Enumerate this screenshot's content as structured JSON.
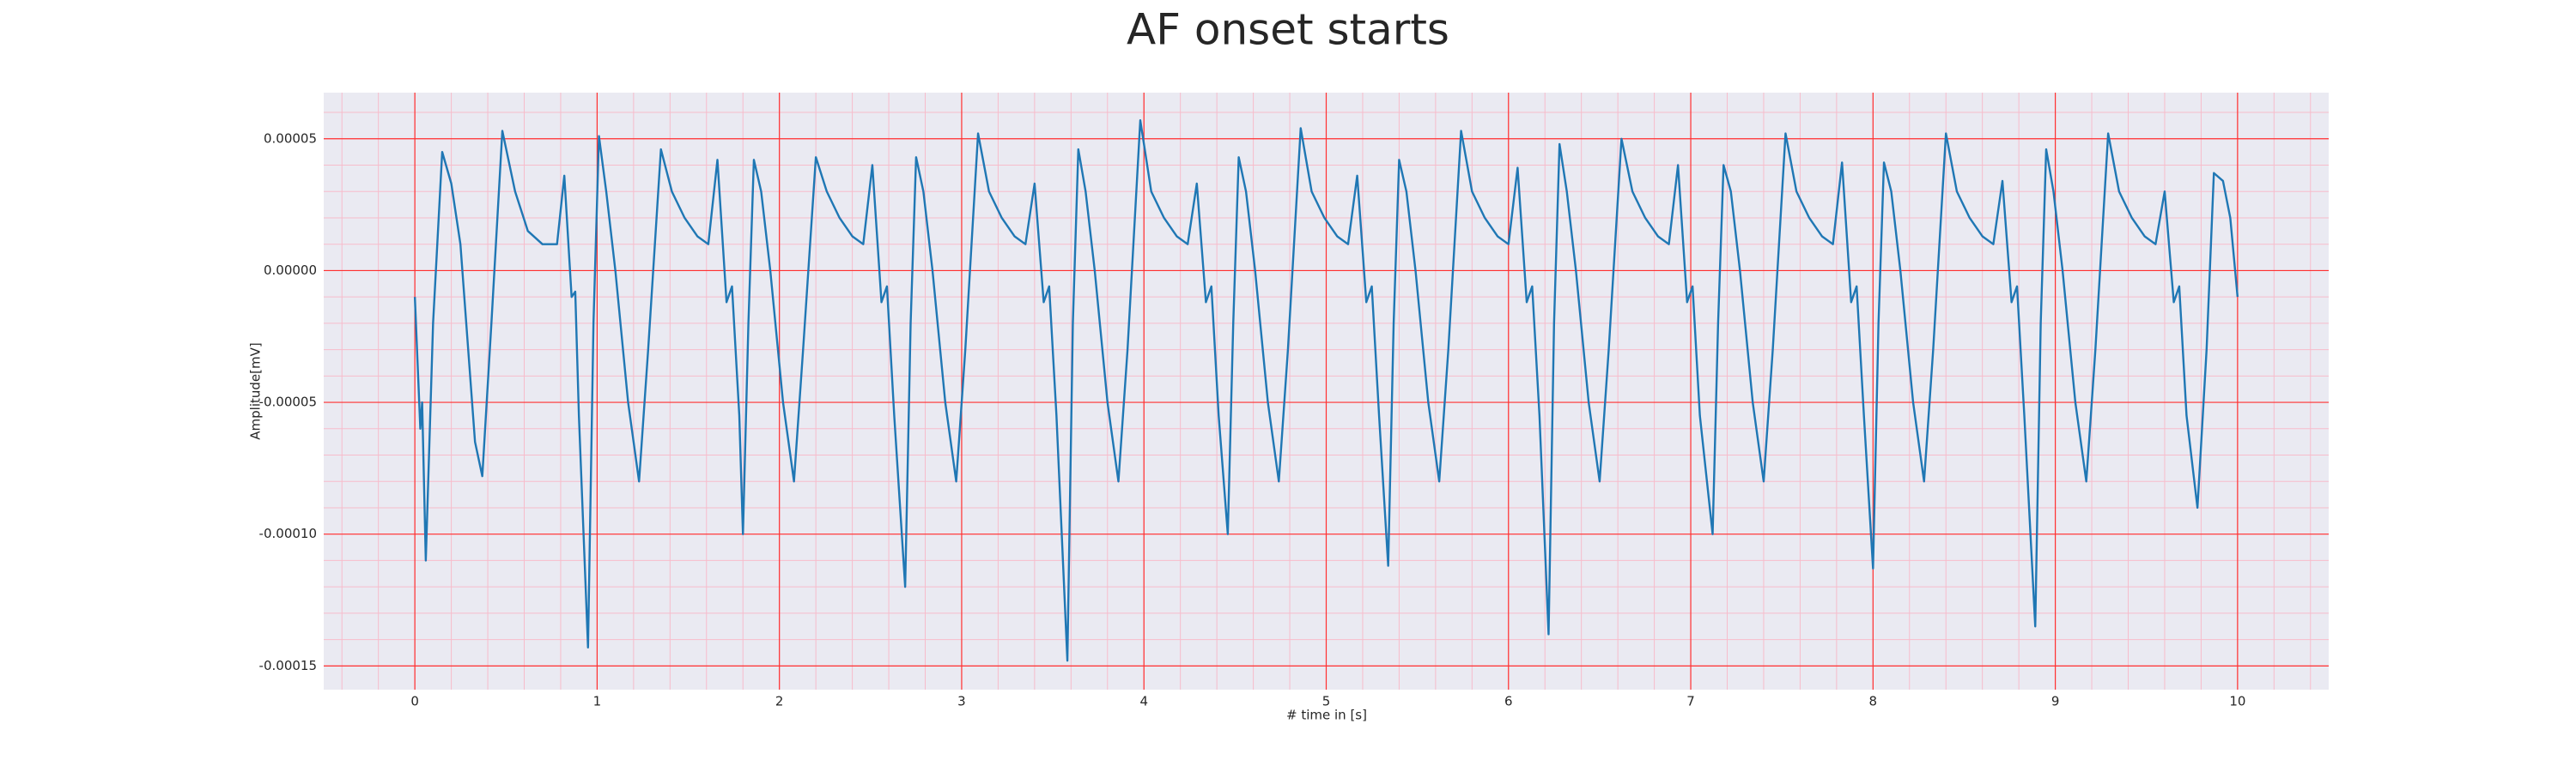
{
  "chart_data": {
    "type": "line",
    "title": "AF onset starts",
    "xlabel": "# time in [s]",
    "ylabel": "Amplitude[mV]",
    "x": [
      0,
      0.03,
      0.04,
      0.06,
      0.1,
      0.15,
      0.2,
      0.25,
      0.33,
      0.37,
      0.42,
      0.48,
      0.55,
      0.62,
      0.7,
      0.78,
      0.82,
      0.86,
      0.88,
      0.9,
      0.95,
      0.98,
      1.01,
      1.05,
      1.1,
      1.17,
      1.23,
      1.28,
      1.35,
      1.41,
      1.48,
      1.55,
      1.61,
      1.66,
      1.71,
      1.74,
      1.78,
      1.8,
      1.83,
      1.86,
      1.9,
      1.95,
      2.02,
      2.08,
      2.13,
      2.2,
      2.26,
      2.33,
      2.4,
      2.46,
      2.51,
      2.56,
      2.59,
      2.63,
      2.69,
      2.72,
      2.75,
      2.79,
      2.84,
      2.91,
      2.97,
      3.02,
      3.09,
      3.15,
      3.22,
      3.29,
      3.35,
      3.4,
      3.45,
      3.48,
      3.52,
      3.58,
      3.61,
      3.64,
      3.68,
      3.73,
      3.8,
      3.86,
      3.91,
      3.98,
      4.04,
      4.11,
      4.18,
      4.24,
      4.29,
      4.34,
      4.37,
      4.41,
      4.46,
      4.49,
      4.52,
      4.56,
      4.61,
      4.68,
      4.74,
      4.79,
      4.86,
      4.92,
      4.99,
      5.06,
      5.12,
      5.17,
      5.22,
      5.25,
      5.29,
      5.34,
      5.37,
      5.4,
      5.44,
      5.49,
      5.56,
      5.62,
      5.67,
      5.74,
      5.8,
      5.87,
      5.94,
      6,
      6.05,
      6.1,
      6.13,
      6.17,
      6.22,
      6.25,
      6.28,
      6.32,
      6.37,
      6.44,
      6.5,
      6.55,
      6.62,
      6.68,
      6.75,
      6.82,
      6.88,
      6.93,
      6.98,
      7.01,
      7.05,
      7.12,
      7.15,
      7.18,
      7.22,
      7.27,
      7.34,
      7.4,
      7.45,
      7.52,
      7.58,
      7.65,
      7.72,
      7.78,
      7.83,
      7.88,
      7.91,
      7.95,
      8,
      8.03,
      8.06,
      8.1,
      8.15,
      8.22,
      8.28,
      8.33,
      8.4,
      8.46,
      8.53,
      8.6,
      8.66,
      8.71,
      8.76,
      8.79,
      8.83,
      8.89,
      8.92,
      8.95,
      8.99,
      9.04,
      9.11,
      9.17,
      9.22,
      9.29,
      9.35,
      9.42,
      9.49,
      9.55,
      9.6,
      9.65,
      9.68,
      9.72,
      9.78,
      9.83,
      9.87,
      9.92,
      9.96,
      10
    ],
    "series": [
      {
        "color": "#1f77b4",
        "values": [
          -1e-05,
          -6e-05,
          -5e-05,
          -0.00011,
          -2e-05,
          4.5e-05,
          3.3e-05,
          1e-05,
          -6.5e-05,
          -7.8e-05,
          -2e-05,
          5.3e-05,
          3e-05,
          1.5e-05,
          1e-05,
          1e-05,
          3.6e-05,
          -1e-05,
          -8e-06,
          -5.5e-05,
          -0.000143,
          -2e-05,
          5.1e-05,
          3e-05,
          0,
          -5e-05,
          -8e-05,
          -3e-05,
          4.6e-05,
          3e-05,
          2e-05,
          1.3e-05,
          1e-05,
          4.2e-05,
          -1.2e-05,
          -6e-06,
          -5.5e-05,
          -0.0001,
          -2e-05,
          4.2e-05,
          3e-05,
          0,
          -5e-05,
          -8e-05,
          -3e-05,
          4.3e-05,
          3e-05,
          2e-05,
          1.3e-05,
          1e-05,
          4e-05,
          -1.2e-05,
          -6e-06,
          -5.5e-05,
          -0.00012,
          -2e-05,
          4.3e-05,
          3e-05,
          0,
          -5e-05,
          -8e-05,
          -3e-05,
          5.2e-05,
          3e-05,
          2e-05,
          1.3e-05,
          1e-05,
          3.3e-05,
          -1.2e-05,
          -6e-06,
          -5.5e-05,
          -0.000148,
          -2e-05,
          4.6e-05,
          3e-05,
          0,
          -5e-05,
          -8e-05,
          -3e-05,
          5.7e-05,
          3e-05,
          2e-05,
          1.3e-05,
          1e-05,
          3.3e-05,
          -1.2e-05,
          -6e-06,
          -5.5e-05,
          -0.0001,
          -2e-05,
          4.3e-05,
          3e-05,
          0,
          -5e-05,
          -8e-05,
          -3e-05,
          5.4e-05,
          3e-05,
          2e-05,
          1.3e-05,
          1e-05,
          3.6e-05,
          -1.2e-05,
          -6e-06,
          -5.5e-05,
          -0.000112,
          -2e-05,
          4.2e-05,
          3e-05,
          0,
          -5e-05,
          -8e-05,
          -3e-05,
          5.3e-05,
          3e-05,
          2e-05,
          1.3e-05,
          1e-05,
          3.9e-05,
          -1.2e-05,
          -6e-06,
          -5.5e-05,
          -0.000138,
          -2e-05,
          4.8e-05,
          3e-05,
          0,
          -5e-05,
          -8e-05,
          -3e-05,
          5e-05,
          3e-05,
          2e-05,
          1.3e-05,
          1e-05,
          4e-05,
          -1.2e-05,
          -6e-06,
          -5.5e-05,
          -0.0001,
          -2e-05,
          4e-05,
          3e-05,
          0,
          -5e-05,
          -8e-05,
          -3e-05,
          5.2e-05,
          3e-05,
          2e-05,
          1.3e-05,
          1e-05,
          4.1e-05,
          -1.2e-05,
          -6e-06,
          -5.5e-05,
          -0.000113,
          -2e-05,
          4.1e-05,
          3e-05,
          0,
          -5e-05,
          -8e-05,
          -3e-05,
          5.2e-05,
          3e-05,
          2e-05,
          1.3e-05,
          1e-05,
          3.4e-05,
          -1.2e-05,
          -6e-06,
          -5.5e-05,
          -0.000135,
          -2e-05,
          4.6e-05,
          3e-05,
          0,
          -5e-05,
          -8e-05,
          -3e-05,
          5.2e-05,
          3e-05,
          2e-05,
          1.3e-05,
          1e-05,
          3e-05,
          -1.2e-05,
          -6e-06,
          -5.5e-05,
          -9e-05,
          -3e-05,
          3.7e-05,
          3.4e-05,
          2e-05,
          -1e-05
        ]
      }
    ],
    "xlim": [
      -0.5,
      10.5
    ],
    "xticks": [
      0,
      1,
      2,
      3,
      4,
      5,
      6,
      7,
      8,
      9,
      10
    ],
    "ylim": [
      -0.000159,
      6.75e-05
    ],
    "yticks": [
      {
        "value": -0.00015,
        "label": "-0.00015"
      },
      {
        "value": -0.0001,
        "label": "-0.00010"
      },
      {
        "value": -5e-05,
        "label": "-0.00005"
      },
      {
        "value": 0,
        "label": "0.00000"
      },
      {
        "value": 5e-05,
        "label": "0.00005"
      }
    ],
    "grid": true,
    "minor_grid": true,
    "grid_color": "#ff3030",
    "minor_grid_color": "#f7bccb",
    "background": "#eaeaf2"
  }
}
